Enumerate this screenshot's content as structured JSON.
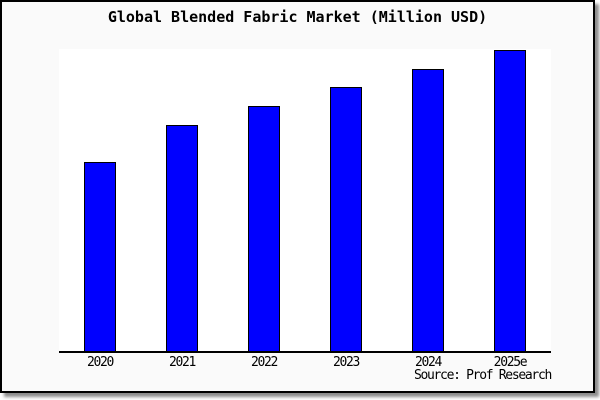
{
  "window": {
    "background_color": "#fafafa",
    "plot_background_color": "#ffffff",
    "border_color": "#000000"
  },
  "title": "Global Blended Fabric Market (Million USD)",
  "source_note": "Source: Prof Research",
  "chart_data": {
    "type": "bar",
    "title": "Global Blended Fabric Market (Million USD)",
    "categories": [
      "2020",
      "2021",
      "2022",
      "2023",
      "2024",
      "2025e"
    ],
    "values": [
      189,
      226,
      245,
      264,
      282,
      301
    ],
    "xlabel": "",
    "ylabel": "",
    "ylim": [
      0,
      302
    ],
    "y_axis_labels_visible": false,
    "grid": false,
    "legend": "none",
    "bar_color": "#0000ff",
    "bar_edge_color": "#000000",
    "annotations": [
      "Source: Prof Research"
    ]
  }
}
